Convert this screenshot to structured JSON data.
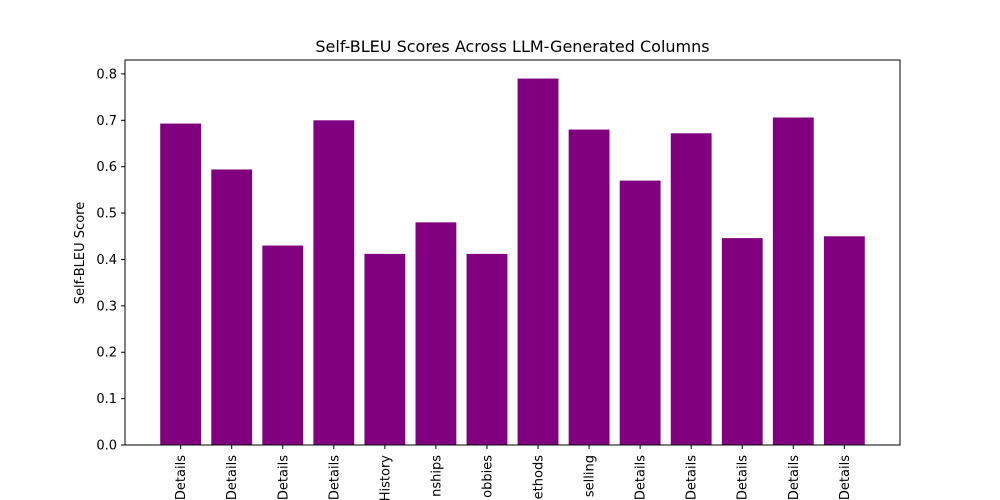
{
  "chart_data": {
    "type": "bar",
    "title": "Self-BLEU Scores Across LLM-Generated Columns",
    "xlabel": "",
    "ylabel": "Self-BLEU Score",
    "categories": [
      "Details",
      "Details",
      "Details",
      "Details",
      "History",
      "nships",
      "obbies",
      "ethods",
      "selling",
      "Details",
      "Details",
      "Details",
      "Details",
      "Details"
    ],
    "values": [
      0.693,
      0.594,
      0.43,
      0.7,
      0.412,
      0.48,
      0.412,
      0.79,
      0.68,
      0.57,
      0.672,
      0.446,
      0.706,
      0.45
    ],
    "ylim": [
      0,
      0.83
    ],
    "yticks": [
      "0.0",
      "0.1",
      "0.2",
      "0.3",
      "0.4",
      "0.5",
      "0.6",
      "0.7",
      "0.8"
    ],
    "bar_color": "#800080",
    "grid": false,
    "legend": "none"
  }
}
